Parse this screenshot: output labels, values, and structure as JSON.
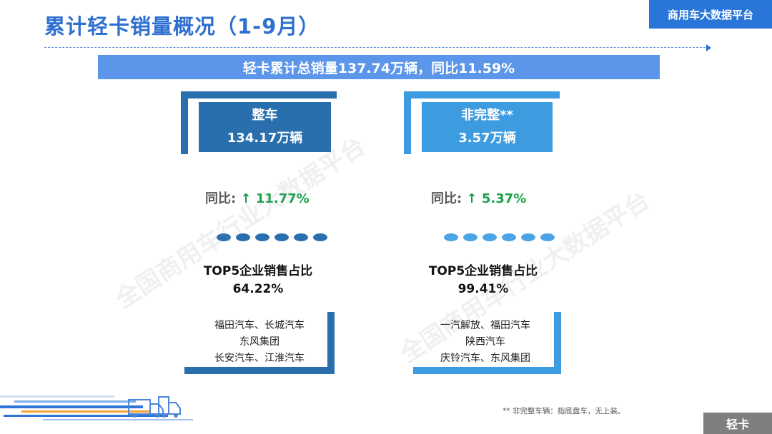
{
  "header": {
    "title": "累计轻卡销量概况（1-9月）",
    "brand": "商用车大数据平台"
  },
  "summary": "轻卡累计总销量137.74万辆，同比11.59%",
  "complete": {
    "name": "整车",
    "volume": "134.17万辆",
    "yoy_label": "同比:",
    "yoy_arrow": "↑",
    "yoy_value": "11.77%",
    "top5_title": "TOP5企业销售占比",
    "top5_share": "64.22%",
    "companies": [
      "福田汽车、长城汽车",
      "东风集团",
      "长安汽车、江淮汽车"
    ]
  },
  "incomplete": {
    "name": "非完整**",
    "volume": "3.57万辆",
    "yoy_label": "同比:",
    "yoy_arrow": "↑",
    "yoy_value": "5.37%",
    "top5_title": "TOP5企业销售占比",
    "top5_share": "99.41%",
    "companies": [
      "一汽解放、福田汽车",
      "陕西汽车",
      "庆铃汽车、东风集团"
    ]
  },
  "footnote": "** 非完整车辆：指底盘车，无上装。",
  "corner_tag": "轻卡",
  "watermark": "全国商用车行业大数据平台",
  "colors": {
    "title_blue": "#2e6fd0",
    "summary_bar": "#5b96ea",
    "dark_card": "#2a6fad",
    "light_card": "#3d9be0",
    "up_green": "#1aa04a"
  }
}
